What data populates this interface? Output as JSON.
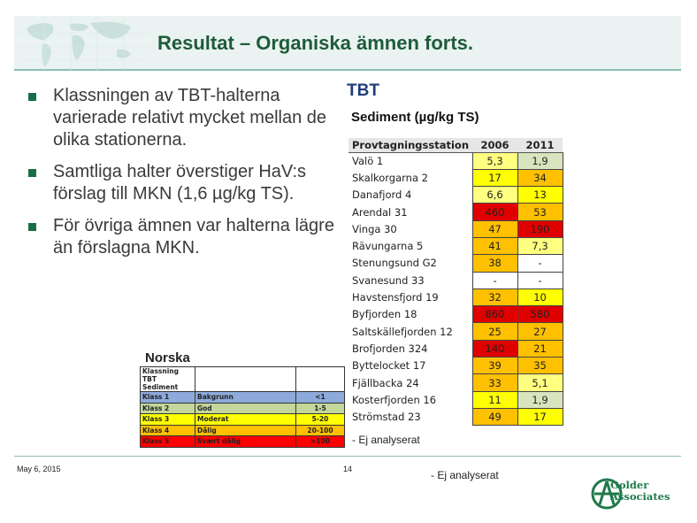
{
  "header": {
    "title": "Resultat – Organiska ämnen forts."
  },
  "bullets": [
    "Klassningen av TBT-halterna varierade relativt mycket mellan de olika stationerna.",
    "Samtliga halter överstiger HaV:s förslag till MKN (1,6 µg/kg TS).",
    "För övriga ämnen var halterna lägre än förslagna MKN."
  ],
  "tbt": {
    "title": "TBT",
    "subtitle": "Sediment (µg/kg TS)",
    "col_station": "Provtagningsstation",
    "col_2006": "2006",
    "col_2011": "2011",
    "rows": [
      {
        "station": "Valö 1",
        "v2006": "5,3",
        "v2011": "1,9",
        "c2006": "#ffff80",
        "c2011": "#d7e4bd"
      },
      {
        "station": "Skalkorgarna 2",
        "v2006": "17",
        "v2011": "34",
        "c2006": "#ffff00",
        "c2011": "#ffc000"
      },
      {
        "station": "Danafjord 4",
        "v2006": "6,6",
        "v2011": "13",
        "c2006": "#ffff80",
        "c2011": "#ffff00"
      },
      {
        "station": "Arendal 31",
        "v2006": "460",
        "v2011": "53",
        "c2006": "#e00000",
        "c2011": "#ffc000"
      },
      {
        "station": "Vinga 30",
        "v2006": "47",
        "v2011": "190",
        "c2006": "#ffc000",
        "c2011": "#e00000"
      },
      {
        "station": "Rävungarna 5",
        "v2006": "41",
        "v2011": "7,3",
        "c2006": "#ffc000",
        "c2011": "#ffff80"
      },
      {
        "station": "Stenungsund G2",
        "v2006": "38",
        "v2011": "-",
        "c2006": "#ffc000",
        "c2011": "#ffffff"
      },
      {
        "station": "Svanesund 33",
        "v2006": "-",
        "v2011": "-",
        "c2006": "#ffffff",
        "c2011": "#ffffff"
      },
      {
        "station": "Havstensfjord 19",
        "v2006": "32",
        "v2011": "10",
        "c2006": "#ffc000",
        "c2011": "#ffff00"
      },
      {
        "station": "Byfjorden 18",
        "v2006": "860",
        "v2011": "580",
        "c2006": "#e00000",
        "c2011": "#e00000"
      },
      {
        "station": "Saltskällefjorden 12",
        "v2006": "25",
        "v2011": "27",
        "c2006": "#ffc000",
        "c2011": "#ffc000"
      },
      {
        "station": "Brofjorden 324",
        "v2006": "140",
        "v2011": "21",
        "c2006": "#e00000",
        "c2011": "#ffc000"
      },
      {
        "station": "Byttelocket 17",
        "v2006": "39",
        "v2011": "35",
        "c2006": "#ffc000",
        "c2011": "#ffc000"
      },
      {
        "station": "Fjällbacka 24",
        "v2006": "33",
        "v2011": "5,1",
        "c2006": "#ffc000",
        "c2011": "#ffff80"
      },
      {
        "station": "Kosterfjorden 16",
        "v2006": "11",
        "v2011": "1,9",
        "c2006": "#ffff00",
        "c2011": "#d7e4bd"
      },
      {
        "station": "Strömstad 23",
        "v2006": "49",
        "v2011": "17",
        "c2006": "#ffc000",
        "c2011": "#ffff00"
      }
    ],
    "note": "- Ej analyserat",
    "note_footer": "- Ej analyserat"
  },
  "norska": {
    "title": "Norska",
    "header_line1": "Klassning TBT",
    "header_line2": "Sediment",
    "rows": [
      {
        "klass": "Klass 1",
        "name": "Bakgrunn",
        "range": "<1",
        "color": "#8eaadb"
      },
      {
        "klass": "Klass 2",
        "name": "God",
        "range": "1-5",
        "color": "#c4d79b"
      },
      {
        "klass": "Klass 3",
        "name": "Moderat",
        "range": "5-20",
        "color": "#ffff00"
      },
      {
        "klass": "Klass 4",
        "name": "Dålig",
        "range": "20-100",
        "color": "#ffc000"
      },
      {
        "klass": "Klass 5",
        "name": "Svært dålig",
        "range": ">100",
        "color": "#ff0000"
      }
    ]
  },
  "footer": {
    "date": "May 6, 2015",
    "page": "14"
  },
  "logo": {
    "line1": "Golder",
    "line2": "Associates"
  }
}
